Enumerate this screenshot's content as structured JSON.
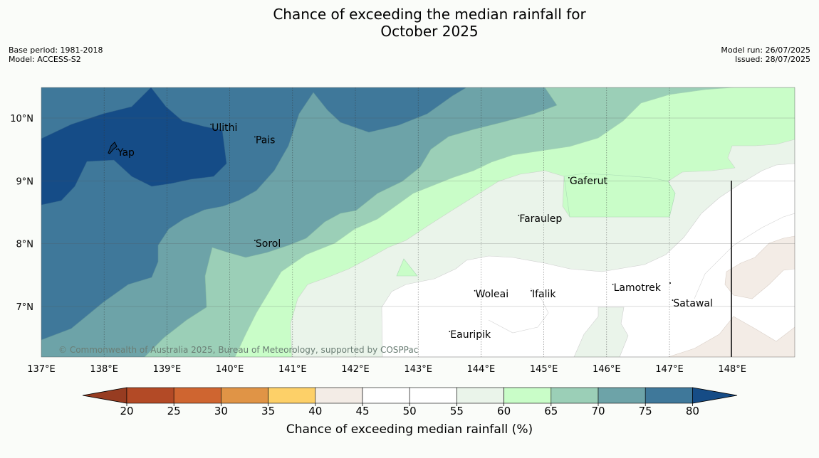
{
  "title": {
    "line1": "Chance of exceeding the median rainfall for",
    "line2": "October 2025"
  },
  "meta_left": {
    "base_period": "Base period: 1981-2018",
    "model": "Model: ACCESS-S2"
  },
  "meta_right": {
    "model_run": "Model run: 26/07/2025",
    "issued": "Issued: 28/07/2025"
  },
  "map": {
    "lon_labels": [
      "137°E",
      "138°E",
      "139°E",
      "140°E",
      "141°E",
      "142°E",
      "143°E",
      "144°E",
      "145°E",
      "146°E",
      "147°E",
      "148°E"
    ],
    "lat_labels": [
      "10°N",
      "9°N",
      "8°N",
      "7°N"
    ],
    "lon_range": [
      137,
      149
    ],
    "lat_range": [
      6.2,
      10.5
    ],
    "places": [
      {
        "name": "Yap",
        "lon": 138.2,
        "lat": 9.5
      },
      {
        "name": "Ulithi",
        "lon": 139.7,
        "lat": 9.9
      },
      {
        "name": "Pais",
        "lon": 140.4,
        "lat": 9.7
      },
      {
        "name": "Gaferut",
        "lon": 145.4,
        "lat": 9.05
      },
      {
        "name": "Faraulep",
        "lon": 144.6,
        "lat": 8.45
      },
      {
        "name": "Sorol",
        "lon": 140.4,
        "lat": 8.05
      },
      {
        "name": "Lamotrek",
        "lon": 146.1,
        "lat": 7.35
      },
      {
        "name": "Woleai",
        "lon": 143.9,
        "lat": 7.25
      },
      {
        "name": "Ifalik",
        "lon": 144.8,
        "lat": 7.25
      },
      {
        "name": "Satawal",
        "lon": 147.05,
        "lat": 7.1
      },
      {
        "name": "Eauripik",
        "lon": 143.5,
        "lat": 6.6
      }
    ],
    "copyright": "© Commonwealth of Australia 2025, Bureau of Meteorology, supported by COSPPac"
  },
  "colorbar": {
    "ticks": [
      "20",
      "25",
      "30",
      "35",
      "40",
      "45",
      "50",
      "55",
      "60",
      "65",
      "70",
      "75",
      "80"
    ],
    "colors": [
      "#b34a26",
      "#cf6530",
      "#e09446",
      "#fdd068",
      "#f3ece6",
      "#ffffff",
      "#ffffff",
      "#eaf4ea",
      "#c9fdc8",
      "#9bcfb7",
      "#6da3a8",
      "#3f789a"
    ],
    "under_color": "#973c21",
    "over_color": "#164c86",
    "title": "Chance of exceeding median rainfall (%)"
  },
  "colors": {
    "blue_dark": "#154c87",
    "blue": "#3f789a",
    "teal": "#6da3a8",
    "green_mid": "#9bcfb7",
    "green_light": "#c9fdc8",
    "pale_green": "#eaf4ea",
    "white": "#ffffff",
    "beige": "#f3ece6"
  }
}
